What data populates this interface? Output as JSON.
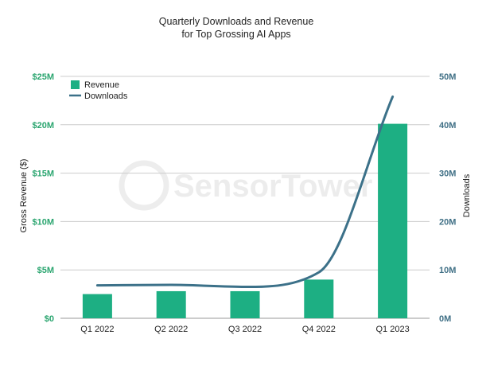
{
  "colors": {
    "revenue": "#1daf83",
    "downloads": "#3c7189",
    "left_axis": "#2aa56f",
    "right_axis": "#3f6f85",
    "grid": "#cccccc",
    "text": "#222222"
  },
  "watermark": {
    "text": "SensorTower"
  },
  "chart_data": {
    "type": "bar",
    "title": [
      "Quarterly Downloads and Revenue",
      "for Top Grossing AI Apps"
    ],
    "categories": [
      "Q1 2022",
      "Q2 2022",
      "Q3 2022",
      "Q4 2022",
      "Q1 2023"
    ],
    "series": [
      {
        "name": "Revenue",
        "type": "bar",
        "axis": "left",
        "values": [
          2.5,
          2.8,
          2.8,
          4.0,
          20.1
        ]
      },
      {
        "name": "Downloads",
        "type": "line",
        "axis": "right",
        "values": [
          6.8,
          6.9,
          6.5,
          9.5,
          45.8
        ]
      }
    ],
    "ylabel": "Gross Revenue ($)",
    "y2label": "Downloads",
    "ylim": [
      0,
      25
    ],
    "y2lim": [
      0,
      50
    ],
    "yticks": [
      0,
      5,
      10,
      15,
      20,
      25
    ],
    "y2ticks": [
      0,
      10,
      20,
      30,
      40,
      50
    ],
    "ytick_labels": [
      "$0",
      "$5M",
      "$10M",
      "$15M",
      "$20M",
      "$25M"
    ],
    "y2tick_labels": [
      "0M",
      "10M",
      "20M",
      "30M",
      "40M",
      "50M"
    ],
    "grid": true,
    "legend": {
      "position": "top-left",
      "entries": [
        "Revenue",
        "Downloads"
      ]
    }
  }
}
